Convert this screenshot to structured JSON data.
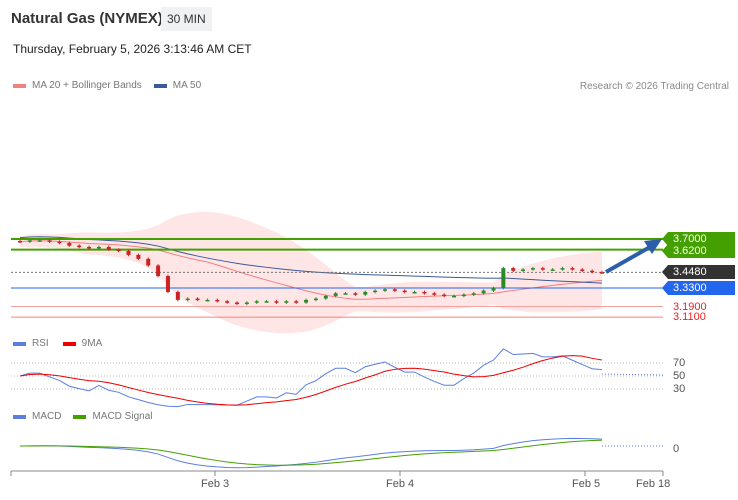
{
  "header": {
    "title": "Natural Gas (NYMEX)",
    "timeframe": "30 MIN",
    "datetime": "Thursday, February 5, 2026 3:13:46 AM CET",
    "credit": "Research © 2026 Trading Central"
  },
  "legend": {
    "ma20": "MA 20 + Bollinger Bands",
    "ma50": "MA 50",
    "rsi": "RSI",
    "rsi_ma": "9MA",
    "macd": "MACD",
    "macd_signal": "MACD Signal"
  },
  "colors": {
    "ma20": "#f08080",
    "bollinger": "#ffe0e0",
    "ma50": "#3a5a9a",
    "rsi": "#5b7fe0",
    "rsi_ma": "#ee0000",
    "macd": "#5b7fe0",
    "macd_signal": "#44a000",
    "resistance": "#44a000",
    "support": "#2266ee",
    "last": "#333333",
    "up": "#2a8a2a",
    "down": "#cc2222"
  },
  "chart_data": {
    "type": "candlestick",
    "closes": [
      3.68,
      3.69,
      3.69,
      3.68,
      3.67,
      3.65,
      3.64,
      3.63,
      3.64,
      3.62,
      3.61,
      3.58,
      3.55,
      3.5,
      3.42,
      3.3,
      3.24,
      3.25,
      3.24,
      3.24,
      3.23,
      3.22,
      3.21,
      3.22,
      3.23,
      3.23,
      3.22,
      3.23,
      3.22,
      3.24,
      3.25,
      3.27,
      3.29,
      3.29,
      3.28,
      3.3,
      3.31,
      3.32,
      3.31,
      3.3,
      3.3,
      3.29,
      3.28,
      3.27,
      3.27,
      3.28,
      3.29,
      3.31,
      3.33,
      3.48,
      3.46,
      3.47,
      3.48,
      3.47,
      3.47,
      3.48,
      3.47,
      3.46,
      3.45,
      3.448
    ],
    "x_ticks": [
      "Feb 3",
      "Feb 4",
      "Feb 5",
      "Feb 18"
    ],
    "price_levels": {
      "resistance": [
        "3.7000",
        "3.6200"
      ],
      "last": "3.4480",
      "pivot": "3.3300",
      "support": [
        "3.1900",
        "3.1100"
      ]
    },
    "rsi_ticks": [
      "70",
      "50",
      "30"
    ],
    "macd_ticks": [
      "0"
    ],
    "forecast": "up"
  }
}
